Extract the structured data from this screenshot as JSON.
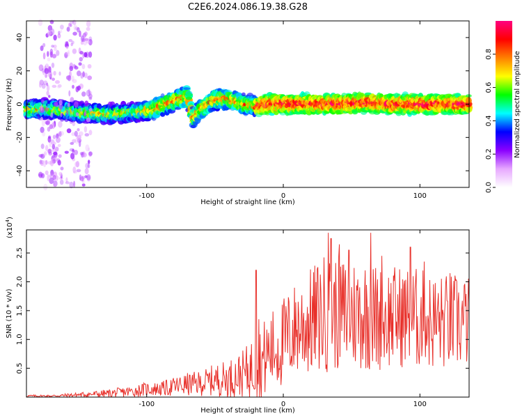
{
  "figure": {
    "title": "C2E6.2024.086.19.38.G28"
  },
  "chart_data": [
    {
      "type": "heatmap",
      "xlabel": "Height of straight line (km)",
      "ylabel": "Frequency (Hz)",
      "xlim": [
        -188,
        136
      ],
      "ylim": [
        -50,
        50
      ],
      "xticks": [
        -100,
        0,
        100
      ],
      "yticks": [
        -40,
        -20,
        0,
        20,
        40
      ],
      "colorbar": {
        "label": "Normalized spectral amplitude",
        "range": [
          0,
          1
        ],
        "ticks": [
          "0.0",
          "0.2",
          "0.4",
          "0.6",
          "0.8"
        ],
        "colors": [
          "#ffffff",
          "#e7a8ff",
          "#8b00ff",
          "#0000ff",
          "#00ffff",
          "#00ff00",
          "#ffff00",
          "#ff8000",
          "#ff0000",
          "#ff0080"
        ]
      },
      "ridge": {
        "x": [
          -185,
          -170,
          -150,
          -130,
          -110,
          -95,
          -80,
          -70,
          -66,
          -60,
          -50,
          -40,
          -30,
          -20,
          -10,
          0,
          20,
          40,
          60,
          80,
          100,
          120,
          136
        ],
        "y": [
          -3,
          -3,
          -5,
          -6,
          -5,
          -3,
          2,
          5,
          -8,
          -3,
          3,
          3,
          0,
          -1,
          0,
          0,
          0,
          0,
          1,
          0,
          0,
          0,
          0
        ]
      }
    },
    {
      "type": "line",
      "xlabel": "Height of straight line (km)",
      "ylabel": "SNR (10 * v/v)",
      "y_multiplier": "(x10",
      "y_multiplier_exp": "4",
      "y_multiplier_close": ")",
      "xlim": [
        -188,
        136
      ],
      "ylim": [
        0,
        2.9
      ],
      "xticks": [
        -100,
        0,
        100
      ],
      "yticks": [
        "0.5",
        "1.0",
        "1.5",
        "2.0",
        "2.5"
      ],
      "series": [
        {
          "color": "#e8302a",
          "envelope": {
            "x": [
              -188,
              -170,
              -150,
              -130,
              -110,
              -100,
              -90,
              -80,
              -70,
              -60,
              -50,
              -40,
              -30,
              -25,
              -20,
              -15,
              -10,
              -5,
              0,
              10,
              20,
              30,
              40,
              50,
              60,
              70,
              80,
              90,
              100,
              110,
              120,
              130,
              136
            ],
            "mean": [
              0.02,
              0.02,
              0.04,
              0.06,
              0.1,
              0.14,
              0.14,
              0.18,
              0.22,
              0.24,
              0.3,
              0.32,
              0.4,
              0.45,
              0.55,
              0.62,
              0.8,
              0.85,
              0.95,
              1.2,
              1.3,
              1.45,
              1.45,
              1.45,
              1.45,
              1.35,
              1.4,
              1.4,
              1.35,
              1.3,
              1.3,
              1.3,
              1.3
            ],
            "amp": [
              0.02,
              0.02,
              0.04,
              0.07,
              0.1,
              0.12,
              0.12,
              0.17,
              0.2,
              0.22,
              0.28,
              0.33,
              0.4,
              0.5,
              0.6,
              0.7,
              0.7,
              0.75,
              0.8,
              0.85,
              0.95,
              1.05,
              1.0,
              1.0,
              1.0,
              0.95,
              0.9,
              0.9,
              0.9,
              0.85,
              0.85,
              0.85,
              0.8
            ]
          },
          "peaks": [
            {
              "x": -20,
              "y": 2.2
            },
            {
              "x": -18,
              "y": 1.35
            },
            {
              "x": 33,
              "y": 2.85
            },
            {
              "x": 35,
              "y": 2.75
            },
            {
              "x": 41,
              "y": 2.65
            },
            {
              "x": 48,
              "y": 2.55
            },
            {
              "x": 64,
              "y": 2.85
            },
            {
              "x": 72,
              "y": 2.45
            },
            {
              "x": 93,
              "y": 2.6
            },
            {
              "x": 103,
              "y": 2.35
            },
            {
              "x": 122,
              "y": 2.15
            }
          ]
        }
      ]
    }
  ]
}
